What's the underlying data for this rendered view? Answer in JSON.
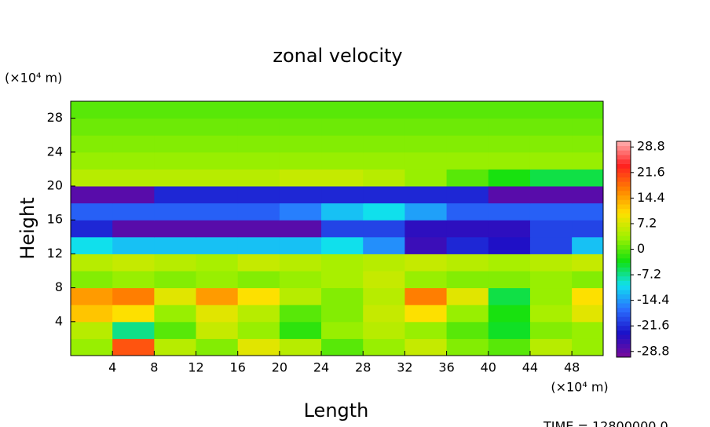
{
  "chart_data": {
    "type": "contour",
    "title": "zonal velocity",
    "xlabel": "Length",
    "ylabel": "Height",
    "xunit": "(×10⁴ m)",
    "yunit": "(×10⁴ m)",
    "annotation": "TIME = 12800000.0",
    "x": [
      2,
      6,
      10,
      14,
      18,
      22,
      26,
      30,
      34,
      38,
      42,
      46,
      50
    ],
    "y": [
      1,
      3,
      5,
      7,
      9,
      11,
      13,
      15,
      17,
      19,
      21,
      23,
      25,
      27,
      29
    ],
    "z": [
      [
        3,
        20,
        5,
        2,
        8,
        5,
        0,
        3,
        6,
        2,
        0,
        5,
        3
      ],
      [
        5,
        -7,
        0,
        6,
        3,
        -2,
        3,
        5,
        3,
        0,
        -4,
        2,
        3
      ],
      [
        12,
        10,
        3,
        8,
        5,
        0,
        2,
        6,
        10,
        3,
        -3,
        4,
        8
      ],
      [
        15,
        17,
        8,
        15,
        10,
        5,
        2,
        5,
        17,
        8,
        -5,
        3,
        10
      ],
      [
        2,
        3,
        2,
        3,
        2,
        3,
        4,
        6,
        3,
        2,
        2,
        3,
        2
      ],
      [
        5,
        6,
        5,
        4,
        6,
        5,
        4,
        5,
        6,
        5,
        4,
        5,
        6
      ],
      [
        -10,
        -12,
        -12,
        -12,
        -12,
        -12,
        -10,
        -15,
        -26,
        -22,
        -24,
        -20,
        -12
      ],
      [
        -22,
        -28,
        -28,
        -28,
        -28,
        -28,
        -20,
        -20,
        -25,
        -25,
        -25,
        -20,
        -20
      ],
      [
        -18,
        -18,
        -18,
        -18,
        -18,
        -16,
        -12,
        -10,
        -14,
        -18,
        -18,
        -18,
        -18
      ],
      [
        -28,
        -28,
        -22,
        -22,
        -22,
        -22,
        -22,
        -22,
        -22,
        -22,
        -28,
        -28,
        -28
      ],
      [
        5,
        5,
        5,
        5,
        5,
        6,
        6,
        5,
        3,
        0,
        -3,
        -5,
        -5
      ],
      [
        3,
        3,
        3,
        3,
        3,
        3,
        3,
        3,
        3,
        3,
        3,
        3,
        3
      ],
      [
        2,
        2,
        2,
        2,
        2,
        2,
        2,
        2,
        2,
        2,
        2,
        2,
        2
      ],
      [
        1,
        1,
        1,
        1,
        1,
        1,
        1,
        1,
        1,
        1,
        1,
        1,
        1
      ],
      [
        0,
        0,
        0,
        0,
        0,
        0,
        0,
        0,
        0,
        0,
        0,
        0,
        0
      ]
    ],
    "xlim": [
      0,
      51
    ],
    "ylim": [
      0,
      30
    ],
    "xticks": [
      4,
      8,
      12,
      16,
      20,
      24,
      28,
      32,
      36,
      40,
      44,
      48
    ],
    "yticks": [
      4,
      8,
      12,
      16,
      20,
      24,
      28
    ],
    "zlim": [
      -30.4,
      30.4
    ],
    "zticks": [
      28.8,
      21.6,
      14.4,
      7.2,
      0,
      -7.2,
      -14.4,
      -21.6,
      -28.8
    ],
    "colormap": [
      "#7a0a9a",
      "#1a10c8",
      "#2a70ff",
      "#10e0f0",
      "#10e010",
      "#a0f000",
      "#ffe000",
      "#ff8000",
      "#ff2020",
      "#ffb0b0"
    ]
  }
}
